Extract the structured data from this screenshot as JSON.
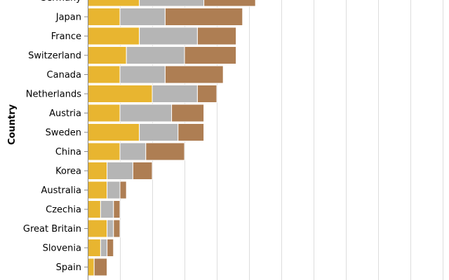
{
  "chart_data": {
    "type": "bar",
    "orientation": "horizontal",
    "stacked": true,
    "ylabel": "Country",
    "categories": [
      "Germany",
      "Japan",
      "France",
      "Switzerland",
      "Canada",
      "Netherlands",
      "Austria",
      "Sweden",
      "China",
      "Korea",
      "Australia",
      "Czechia",
      "Great Britain",
      "Slovenia",
      "Spain"
    ],
    "series": [
      {
        "key": "gold",
        "color": "#e8b530",
        "values": [
          16,
          10,
          16,
          12,
          10,
          20,
          10,
          16,
          10,
          6,
          6,
          4,
          6,
          4,
          2
        ]
      },
      {
        "key": "silver",
        "color": "#b5b5b5",
        "values": [
          20,
          14,
          18,
          18,
          14,
          14,
          16,
          12,
          8,
          8,
          4,
          4,
          2,
          2,
          0
        ]
      },
      {
        "key": "bronze",
        "color": "#ae7e53",
        "values": [
          16,
          24,
          12,
          16,
          18,
          6,
          10,
          8,
          12,
          6,
          2,
          2,
          2,
          2,
          4
        ]
      }
    ],
    "xlim": [
      0,
      110
    ],
    "x_grid_step": 10,
    "grid": true
  }
}
